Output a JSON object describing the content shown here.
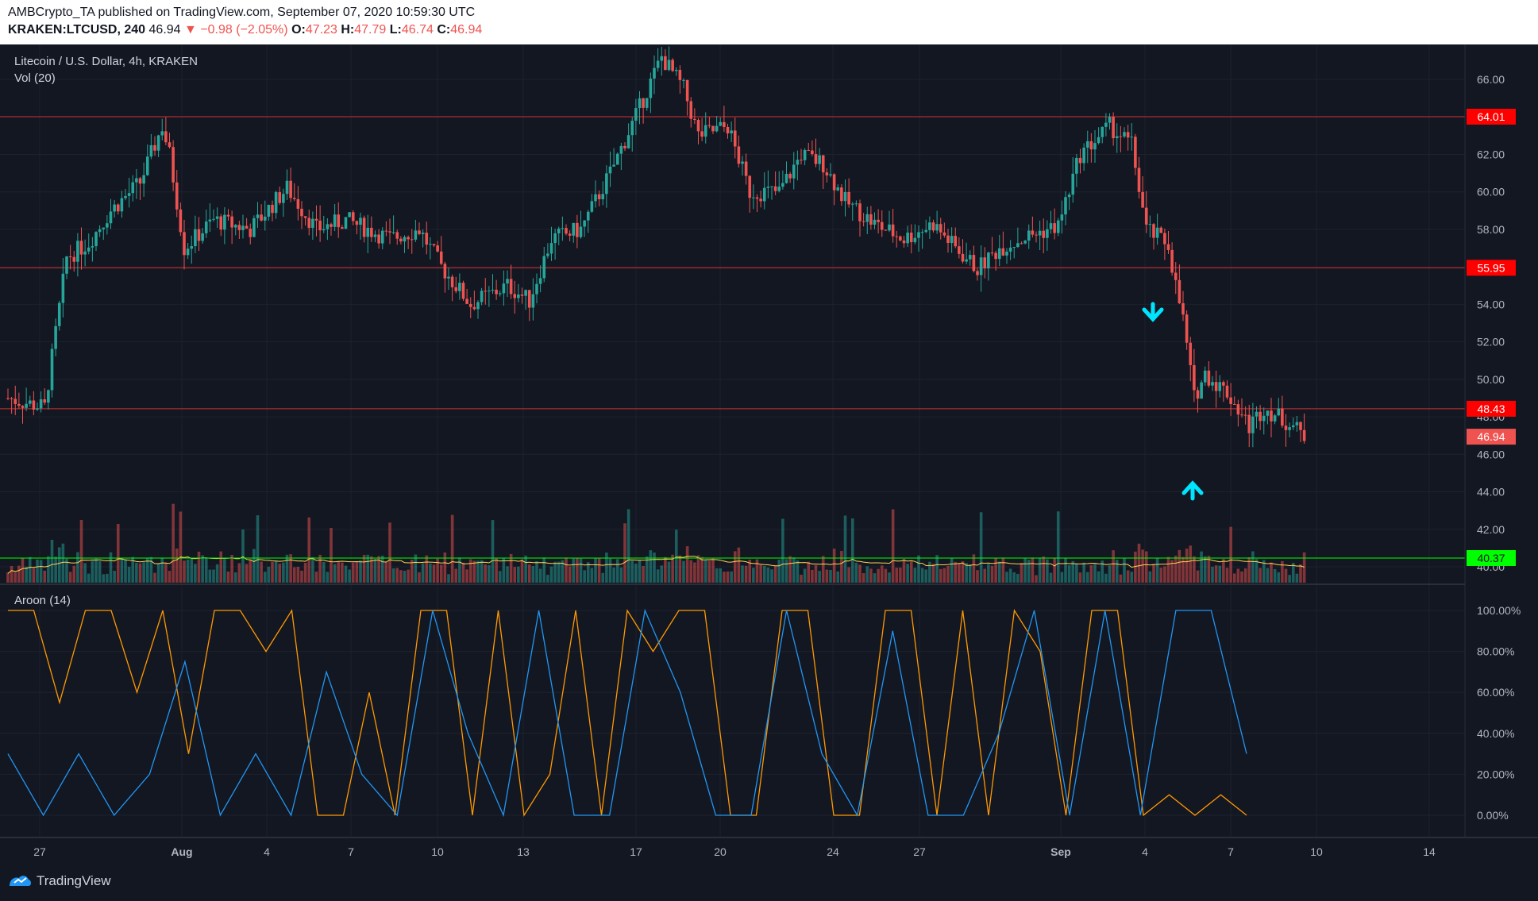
{
  "header": {
    "publisher_line": "AMBCrypto_TA published on TradingView.com, September 07, 2020 10:59:30 UTC",
    "symbol": "KRAKEN:LTCUSD, 240",
    "last": "46.94",
    "change": "−0.98 (−2.05%)",
    "o_label": "O:",
    "o": "47.23",
    "h_label": "H:",
    "h": "47.79",
    "l_label": "L:",
    "l": "46.74",
    "c_label": "C:",
    "c": "46.94"
  },
  "brand": {
    "label": "TradingView"
  },
  "colors": {
    "up": "#26a69a",
    "down": "#ef5350",
    "aroon_up": "#ff9800",
    "aroon_down": "#2196f3",
    "volume_ma": "#ffd54f",
    "levels": "#d32f2f",
    "highlight_level": "#00ff00",
    "arrows": "#00e5ff"
  },
  "chart_data": {
    "type": "candlestick",
    "title": "Litecoin / U.S. Dollar, 4h, KRAKEN",
    "volume_label": "Vol (20)",
    "indicator_label": "Aroon (14)",
    "price_ticks": [
      "66.00",
      "64.00",
      "62.00",
      "60.00",
      "58.00",
      "56.00",
      "54.00",
      "52.00",
      "50.00",
      "48.00",
      "46.00",
      "44.00",
      "42.00",
      "40.00"
    ],
    "aroon_ticks": [
      "100.00%",
      "80.00%",
      "60.00%",
      "40.00%",
      "20.00%",
      "0.00%"
    ],
    "x_ticks": [
      "27",
      "Aug",
      "4",
      "7",
      "10",
      "13",
      "17",
      "20",
      "24",
      "27",
      "Sep",
      "4",
      "7",
      "10",
      "14"
    ],
    "price_range": [
      39.5,
      67.5
    ],
    "resistance_levels": [
      "64.01",
      "55.95",
      "48.43"
    ],
    "volume_level": "40.37",
    "last_price": "46.94",
    "signals": [
      "sell arrow near 53.5 (Sep 4)",
      "buy arrow near 44.0 (Sep 5)"
    ],
    "price_path": [
      [
        0,
        49.0
      ],
      [
        10,
        48.5
      ],
      [
        16,
        56.5
      ],
      [
        22,
        57.3
      ],
      [
        28,
        59.0
      ],
      [
        36,
        60.5
      ],
      [
        42,
        63.5
      ],
      [
        44,
        62.0
      ],
      [
        48,
        57.0
      ],
      [
        56,
        58.5
      ],
      [
        66,
        58.0
      ],
      [
        76,
        60.2
      ],
      [
        84,
        58.0
      ],
      [
        92,
        58.5
      ],
      [
        104,
        57.5
      ],
      [
        112,
        58.0
      ],
      [
        118,
        56.0
      ],
      [
        126,
        54.0
      ],
      [
        136,
        55.0
      ],
      [
        142,
        54.2
      ],
      [
        148,
        57.5
      ],
      [
        156,
        58.0
      ],
      [
        164,
        61.0
      ],
      [
        172,
        64.5
      ],
      [
        178,
        67.2
      ],
      [
        184,
        65.5
      ],
      [
        188,
        63.0
      ],
      [
        196,
        63.5
      ],
      [
        202,
        60.0
      ],
      [
        210,
        60.0
      ],
      [
        216,
        62.0
      ],
      [
        222,
        61.5
      ],
      [
        228,
        59.5
      ],
      [
        236,
        58.3
      ],
      [
        244,
        57.5
      ],
      [
        252,
        58.3
      ],
      [
        258,
        57.0
      ],
      [
        264,
        55.9
      ],
      [
        270,
        57.0
      ],
      [
        276,
        57.5
      ],
      [
        286,
        58.2
      ],
      [
        292,
        62.0
      ],
      [
        300,
        63.5
      ],
      [
        306,
        62.5
      ],
      [
        310,
        58.0
      ],
      [
        316,
        57.2
      ],
      [
        318,
        55.0
      ],
      [
        320,
        53.2
      ],
      [
        323,
        49.0
      ],
      [
        326,
        50.3
      ],
      [
        332,
        49.3
      ],
      [
        338,
        47.5
      ],
      [
        342,
        48.5
      ],
      [
        346,
        48.0
      ],
      [
        350,
        47.5
      ],
      [
        353,
        46.94
      ]
    ],
    "aroon_up": [
      100,
      100,
      55,
      100,
      100,
      60,
      100,
      30,
      100,
      100,
      80,
      100,
      0,
      0,
      60,
      0,
      100,
      100,
      0,
      100,
      0,
      20,
      100,
      0,
      100,
      80,
      100,
      100,
      0,
      0,
      100,
      100,
      0,
      0,
      100,
      100,
      0,
      100,
      0,
      100,
      80,
      0,
      100,
      100,
      0,
      10,
      0,
      10,
      0
    ],
    "aroon_down": [
      30,
      0,
      30,
      0,
      20,
      75,
      0,
      30,
      0,
      70,
      20,
      0,
      100,
      40,
      0,
      100,
      0,
      0,
      100,
      60,
      0,
      0,
      100,
      30,
      0,
      90,
      0,
      0,
      40,
      100,
      0,
      100,
      0,
      100,
      100,
      30
    ]
  }
}
